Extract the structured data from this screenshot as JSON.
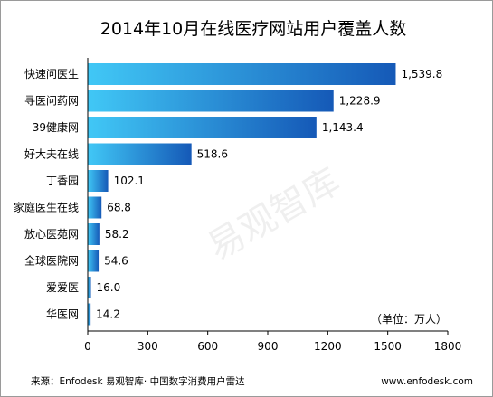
{
  "chart_data": {
    "type": "bar",
    "orientation": "horizontal",
    "title": "2014年10月在线医疗网站用户覆盖人数",
    "unit_note": "（单位：万人）",
    "categories": [
      "快速问医生",
      "寻医问药网",
      "39健康网",
      "好大夫在线",
      "丁香园",
      "家庭医生在线",
      "放心医苑网",
      "全球医院网",
      "爱爱医",
      "华医网"
    ],
    "values": [
      1539.8,
      1228.9,
      1143.4,
      518.6,
      102.1,
      68.8,
      58.2,
      54.6,
      16.0,
      14.2
    ],
    "value_labels": [
      "1,539.8",
      "1,228.9",
      "1,143.4",
      "518.6",
      "102.1",
      "68.8",
      "58.2",
      "54.6",
      "16.0",
      "14.2"
    ],
    "xlim": [
      0,
      1800
    ],
    "xticks": [
      "0",
      "300",
      "600",
      "900",
      "1200",
      "1500",
      "1800"
    ],
    "grid": false,
    "colors": {
      "bar_light": "#41c8f6",
      "bar_dark": "#1559b7"
    }
  },
  "footer": {
    "source": "来源：Enfodesk 易观智库· 中国数字消费用户雷达",
    "site": "www.enfodesk.com"
  },
  "watermark": "易观智库"
}
